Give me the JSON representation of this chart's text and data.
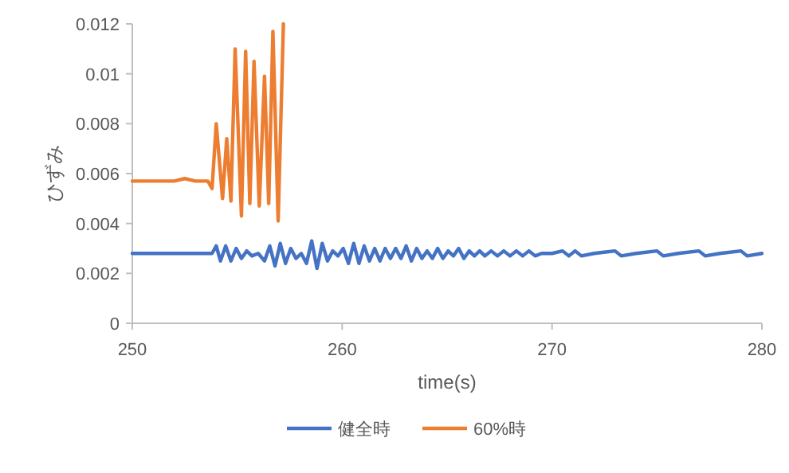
{
  "chart_data": {
    "type": "line",
    "xlabel": "time(s)",
    "ylabel": "ひずみ",
    "xlim": [
      250,
      280
    ],
    "xticks": [
      250,
      260,
      270,
      280
    ],
    "ylim": [
      0,
      0.012
    ],
    "yticks": [
      0,
      0.002,
      0.004,
      0.006,
      0.008,
      0.01,
      0.012
    ],
    "grid": false,
    "legend": "bottom",
    "marker": "none",
    "line_style": "solid",
    "series": [
      {
        "name": "健全時",
        "color": "#4472c4",
        "x": [
          250,
          253.8,
          254.0,
          254.2,
          254.45,
          254.7,
          254.95,
          255.2,
          255.45,
          255.7,
          256.0,
          256.3,
          256.55,
          256.8,
          257.05,
          257.3,
          257.55,
          257.8,
          258.05,
          258.3,
          258.55,
          258.8,
          259.05,
          259.3,
          259.55,
          259.8,
          260.05,
          260.3,
          260.55,
          260.8,
          261.05,
          261.3,
          261.55,
          261.8,
          262.05,
          262.3,
          262.55,
          262.8,
          263.05,
          263.3,
          263.55,
          263.8,
          264.05,
          264.3,
          264.55,
          264.8,
          265.05,
          265.3,
          265.55,
          265.8,
          266.05,
          266.3,
          266.55,
          266.8,
          267.1,
          267.4,
          267.7,
          268.0,
          268.3,
          268.6,
          268.9,
          269.2,
          269.5,
          270,
          270.5,
          270.8,
          271.1,
          271.4,
          272,
          273,
          273.3,
          274,
          275,
          275.3,
          276,
          277,
          277.3,
          278,
          279,
          279.3,
          280
        ],
        "values": [
          0.0028,
          0.0028,
          0.0031,
          0.0025,
          0.0031,
          0.0025,
          0.003,
          0.0026,
          0.0029,
          0.0027,
          0.0028,
          0.0025,
          0.0031,
          0.0023,
          0.0032,
          0.0024,
          0.003,
          0.0026,
          0.0028,
          0.0024,
          0.0033,
          0.0022,
          0.0032,
          0.0025,
          0.0029,
          0.0027,
          0.003,
          0.0024,
          0.0032,
          0.0024,
          0.0031,
          0.0025,
          0.003,
          0.0025,
          0.003,
          0.0026,
          0.003,
          0.0026,
          0.0031,
          0.0025,
          0.003,
          0.0026,
          0.0029,
          0.0026,
          0.003,
          0.0026,
          0.0029,
          0.0027,
          0.003,
          0.0026,
          0.0029,
          0.0027,
          0.0029,
          0.0027,
          0.0029,
          0.0027,
          0.0029,
          0.0027,
          0.0029,
          0.0027,
          0.0029,
          0.0027,
          0.0028,
          0.0028,
          0.0029,
          0.0027,
          0.0029,
          0.0027,
          0.0028,
          0.0029,
          0.0027,
          0.0028,
          0.0029,
          0.0027,
          0.0028,
          0.0029,
          0.0027,
          0.0028,
          0.0029,
          0.0027,
          0.0028
        ]
      },
      {
        "name": "60%時",
        "color": "#ed7d31",
        "x": [
          250,
          252.0,
          252.5,
          253.0,
          253.6,
          253.8,
          254.0,
          254.3,
          254.5,
          254.7,
          254.9,
          255.2,
          255.4,
          255.6,
          255.8,
          256.05,
          256.3,
          256.5,
          256.7,
          256.95,
          257.2
        ],
        "values": [
          0.0057,
          0.0057,
          0.0058,
          0.0057,
          0.0057,
          0.0054,
          0.008,
          0.005,
          0.0074,
          0.0049,
          0.011,
          0.0043,
          0.0109,
          0.0048,
          0.0105,
          0.0047,
          0.0099,
          0.0048,
          0.0117,
          0.0041,
          0.012
        ]
      }
    ]
  }
}
